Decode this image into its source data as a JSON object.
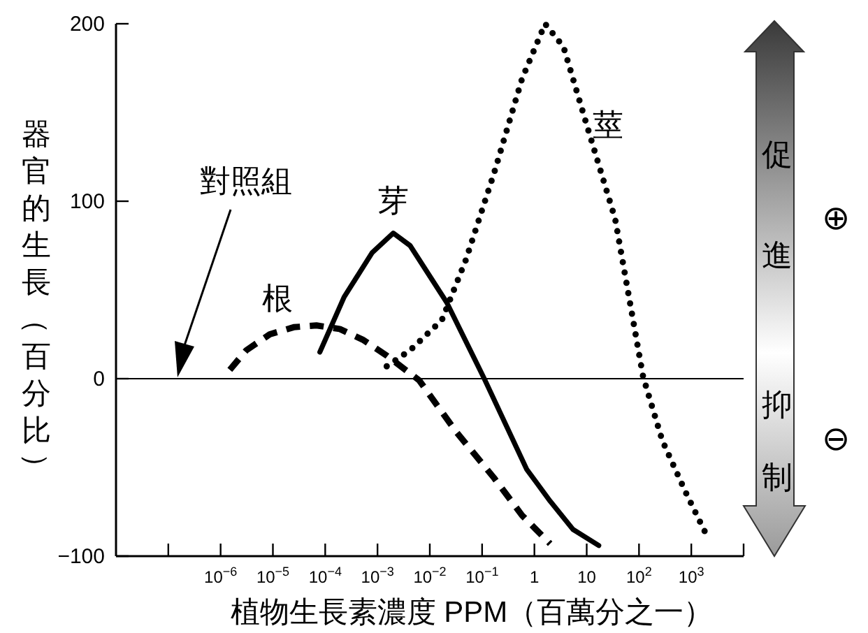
{
  "chart_data": {
    "type": "line",
    "xlabel": "植物生長素濃度 PPM（百萬分之一）",
    "ylabel": "器官的生長（百分比）",
    "log": "x",
    "xlim": [
      1e-08,
      10000.0
    ],
    "xticks": [
      {
        "value": 1e-07,
        "label": null
      },
      {
        "value": 1e-06,
        "label": "10$^{−6}$"
      },
      {
        "value": 1e-05,
        "label": "10$^{−5}$"
      },
      {
        "value": 0.0001,
        "label": "10$^{−4}$"
      },
      {
        "value": 0.001,
        "label": "10$^{−3}$"
      },
      {
        "value": 0.01,
        "label": "10$^{−2}$"
      },
      {
        "value": 0.1,
        "label": "10$^{−1}$"
      },
      1,
      10,
      {
        "value": 100,
        "label": "10$^{2}$"
      },
      {
        "value": 1000,
        "label": "10$^{3}$"
      },
      {
        "value": 10000.0,
        "label": null
      }
    ],
    "ylim": [
      -100,
      200
    ],
    "yticks": [
      {
        "value": -100,
        "label": "−100"
      },
      0,
      100,
      200
    ],
    "ref_lines": [
      {
        "axis": "y",
        "value": 0,
        "color": "#000000"
      }
    ],
    "series": [
      {
        "name": "根",
        "color": "#000000",
        "line_style": "dashed",
        "x": [
          1.5e-06,
          3.1e-06,
          8.7e-06,
          2.5e-05,
          6.8e-05,
          0.00019,
          0.00052,
          0.0015,
          0.0042,
          0.0063,
          0.032,
          0.17,
          0.58,
          2.0
        ],
        "values": [
          5,
          16,
          25,
          29,
          30,
          28,
          22,
          13,
          3,
          -1,
          -30,
          -56,
          -77,
          -93
        ]
      },
      {
        "name": "芽",
        "color": "#000000",
        "line_style": "solid",
        "x": [
          7.9e-05,
          0.00023,
          0.00079,
          0.002,
          0.0042,
          0.021,
          0.11,
          0.71,
          2.0,
          5.5,
          17
        ],
        "values": [
          15,
          46,
          71,
          82,
          75,
          43,
          0,
          -51,
          -69,
          -85,
          -94
        ]
      },
      {
        "name": "莖",
        "color": "#000000",
        "line_style": "dotted",
        "x": [
          0.0015,
          0.0042,
          0.017,
          0.049,
          0.17,
          0.58,
          1.6,
          3.6,
          10,
          35,
          120,
          280,
          780,
          2100
        ],
        "values": [
          7,
          16,
          33,
          67,
          116,
          169,
          200,
          187,
          143,
          90,
          1,
          -35,
          -64,
          -90
        ]
      }
    ],
    "annotations": [
      "對照組",
      "促進",
      "抑制",
      "⊕",
      "⊖"
    ]
  }
}
